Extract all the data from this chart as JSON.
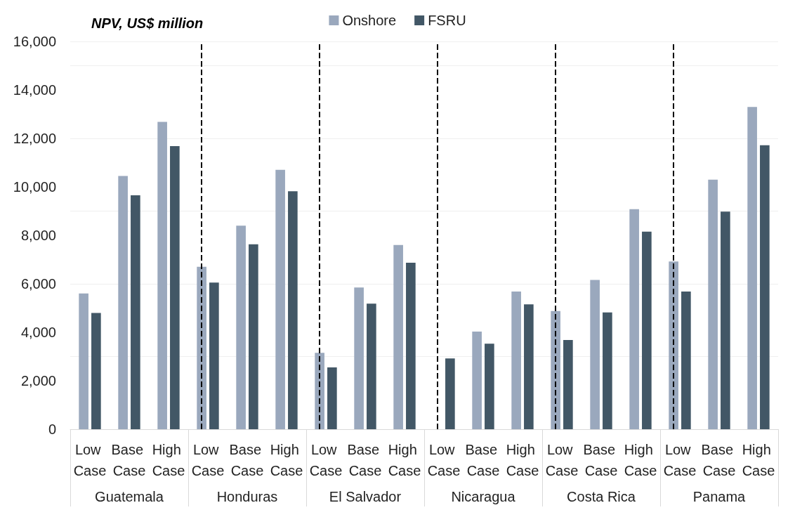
{
  "chart_data": {
    "type": "bar",
    "ylabel": "NPV, US$ million",
    "categories": [
      "Low Case",
      "Base Case",
      "High Case",
      "Low Case",
      "Base Case",
      "High Case",
      "Low Case",
      "Base Case",
      "High Case",
      "Low Case",
      "Base Case",
      "High Case",
      "Low Case",
      "Base Case",
      "High Case",
      "Low Case",
      "Base Case",
      "High Case"
    ],
    "series": [
      {
        "name": "Onshore",
        "color": "#9aa8bd",
        "values": [
          5600,
          10450,
          12680,
          6700,
          8400,
          10700,
          3150,
          5850,
          7600,
          null,
          4030,
          5680,
          4880,
          6160,
          9080,
          6920,
          10300,
          13300
        ]
      },
      {
        "name": "FSRU",
        "color": "#425766",
        "values": [
          4800,
          9650,
          11680,
          6050,
          7630,
          9820,
          2550,
          5180,
          6870,
          2920,
          3530,
          5150,
          3680,
          4820,
          8150,
          5680,
          8980,
          11720
        ]
      }
    ],
    "annotations": [
      "Guatemala",
      "Honduras",
      "El Salvador",
      "Nicaragua",
      "Costa Rica",
      "Panama"
    ],
    "ylim": [
      0,
      16000
    ],
    "yticks": [
      0,
      {
        "value": 2000,
        "label": "2,000"
      },
      {
        "value": 4000,
        "label": "4,000"
      },
      {
        "value": 6000,
        "label": "6,000"
      },
      {
        "value": 8000,
        "label": "8,000"
      },
      {
        "value": 10000,
        "label": "10,000"
      },
      {
        "value": 12000,
        "label": "12,000"
      },
      {
        "value": 14000,
        "label": "14,000"
      },
      {
        "value": 16000,
        "label": "16,000"
      }
    ],
    "grid": "y",
    "legend": "top"
  }
}
